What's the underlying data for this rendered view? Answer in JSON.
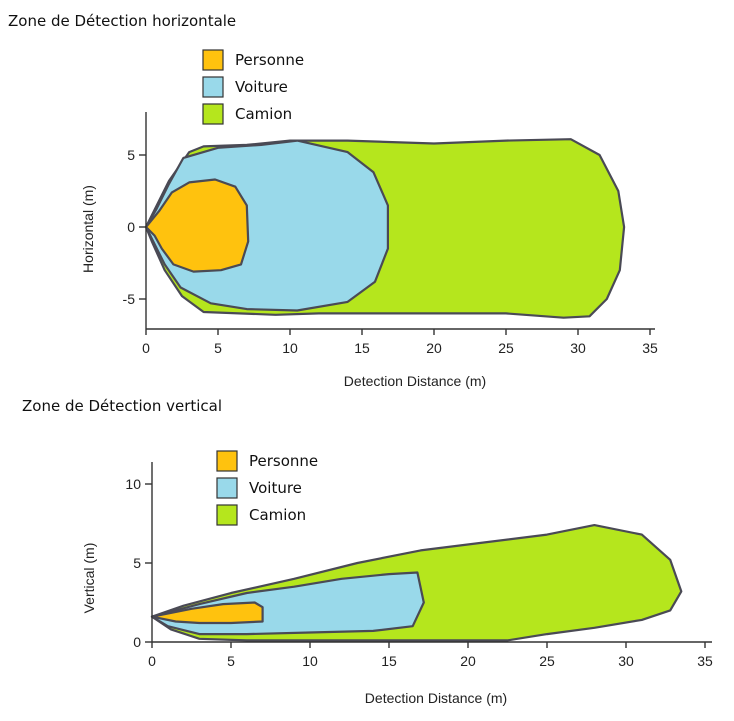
{
  "chart_data": [
    {
      "type": "area",
      "title": "Zone de Détection  horizontale",
      "xlabel": "Detection Distance (m)",
      "ylabel": "Horizontal (m)",
      "xlim": [
        0,
        35
      ],
      "ylim": [
        -7,
        8
      ],
      "xticks": [
        0,
        5,
        10,
        15,
        20,
        25,
        30,
        35
      ],
      "yticks": [
        -5,
        0,
        5
      ],
      "grid": false,
      "legend_position": "top-left",
      "series": [
        {
          "name": "Camion",
          "color": "#b5e61d",
          "points": [
            [
              0,
              0
            ],
            [
              0.6,
              1.2
            ],
            [
              1.6,
              3.2
            ],
            [
              3,
              5.2
            ],
            [
              4,
              5.6
            ],
            [
              7,
              5.7
            ],
            [
              10,
              6
            ],
            [
              14,
              6
            ],
            [
              20,
              5.8
            ],
            [
              25,
              6
            ],
            [
              29.5,
              6.1
            ],
            [
              31.5,
              5
            ],
            [
              32.8,
              2.5
            ],
            [
              33.2,
              0
            ],
            [
              32.9,
              -3
            ],
            [
              32,
              -5
            ],
            [
              30.8,
              -6.2
            ],
            [
              29,
              -6.3
            ],
            [
              25,
              -6
            ],
            [
              18,
              -6
            ],
            [
              12,
              -6
            ],
            [
              9,
              -6.1
            ],
            [
              4,
              -5.9
            ],
            [
              2.5,
              -4.8
            ],
            [
              1.3,
              -3
            ],
            [
              0.4,
              -1
            ],
            [
              0,
              0
            ]
          ]
        },
        {
          "name": "Voiture",
          "color": "#99d9ea",
          "points": [
            [
              0,
              0
            ],
            [
              0.7,
              1.2
            ],
            [
              1.6,
              3
            ],
            [
              2.6,
              4.8
            ],
            [
              5,
              5.5
            ],
            [
              8,
              5.7
            ],
            [
              10.5,
              6
            ],
            [
              14,
              5.2
            ],
            [
              15.8,
              3.8
            ],
            [
              16.8,
              1.5
            ],
            [
              16.8,
              -1.5
            ],
            [
              15.9,
              -3.8
            ],
            [
              14,
              -5.2
            ],
            [
              10.5,
              -5.8
            ],
            [
              7,
              -5.7
            ],
            [
              4.5,
              -5.3
            ],
            [
              2.4,
              -4.2
            ],
            [
              1.3,
              -2.6
            ],
            [
              0.5,
              -1
            ],
            [
              0,
              0
            ]
          ]
        },
        {
          "name": "Personne",
          "color": "#ffc20e",
          "points": [
            [
              0,
              0
            ],
            [
              0.9,
              1.1
            ],
            [
              1.8,
              2.4
            ],
            [
              3,
              3.1
            ],
            [
              4.8,
              3.3
            ],
            [
              6.2,
              2.8
            ],
            [
              7,
              1.5
            ],
            [
              7.1,
              -1
            ],
            [
              6.6,
              -2.6
            ],
            [
              5.2,
              -3
            ],
            [
              3.3,
              -3.1
            ],
            [
              1.9,
              -2.6
            ],
            [
              1.1,
              -1.5
            ],
            [
              0.6,
              -0.6
            ],
            [
              0,
              0
            ]
          ]
        }
      ]
    },
    {
      "type": "area",
      "title": "Zone de Détection vertical",
      "xlabel": "Detection Distance (m)",
      "ylabel": "Vertical (m)",
      "xlim": [
        0,
        35
      ],
      "ylim": [
        0,
        11
      ],
      "xticks": [
        0,
        5,
        10,
        15,
        20,
        25,
        30,
        35
      ],
      "yticks": [
        0,
        5,
        10
      ],
      "grid": false,
      "legend_position": "top-left",
      "series": [
        {
          "name": "Camion",
          "color": "#b5e61d",
          "points": [
            [
              0,
              1.6
            ],
            [
              2,
              2.3
            ],
            [
              5,
              3.1
            ],
            [
              9,
              4
            ],
            [
              13,
              5
            ],
            [
              17,
              5.8
            ],
            [
              21,
              6.3
            ],
            [
              25,
              6.8
            ],
            [
              28,
              7.4
            ],
            [
              31,
              6.8
            ],
            [
              32.8,
              5.2
            ],
            [
              33.5,
              3.2
            ],
            [
              32.8,
              2
            ],
            [
              31,
              1.4
            ],
            [
              28,
              0.9
            ],
            [
              25,
              0.5
            ],
            [
              22.5,
              0.1
            ],
            [
              19,
              0.1
            ],
            [
              15,
              0.1
            ],
            [
              10,
              0.1
            ],
            [
              6,
              0.1
            ],
            [
              3,
              0.2
            ],
            [
              1.2,
              0.8
            ],
            [
              0,
              1.6
            ]
          ]
        },
        {
          "name": "Voiture",
          "color": "#99d9ea",
          "points": [
            [
              0,
              1.6
            ],
            [
              3,
              2.4
            ],
            [
              6,
              3.1
            ],
            [
              9,
              3.5
            ],
            [
              12,
              4
            ],
            [
              15,
              4.3
            ],
            [
              16.8,
              4.4
            ],
            [
              17.2,
              2.5
            ],
            [
              16.5,
              1
            ],
            [
              14,
              0.7
            ],
            [
              10,
              0.6
            ],
            [
              6,
              0.5
            ],
            [
              3,
              0.5
            ],
            [
              1,
              1
            ],
            [
              0,
              1.6
            ]
          ]
        },
        {
          "name": "Personne",
          "color": "#ffc20e",
          "points": [
            [
              0,
              1.6
            ],
            [
              2.5,
              2.1
            ],
            [
              4.5,
              2.4
            ],
            [
              6.5,
              2.5
            ],
            [
              7,
              2.2
            ],
            [
              7,
              1.3
            ],
            [
              5,
              1.2
            ],
            [
              3,
              1.2
            ],
            [
              1.5,
              1.3
            ],
            [
              0,
              1.6
            ]
          ]
        }
      ]
    }
  ]
}
